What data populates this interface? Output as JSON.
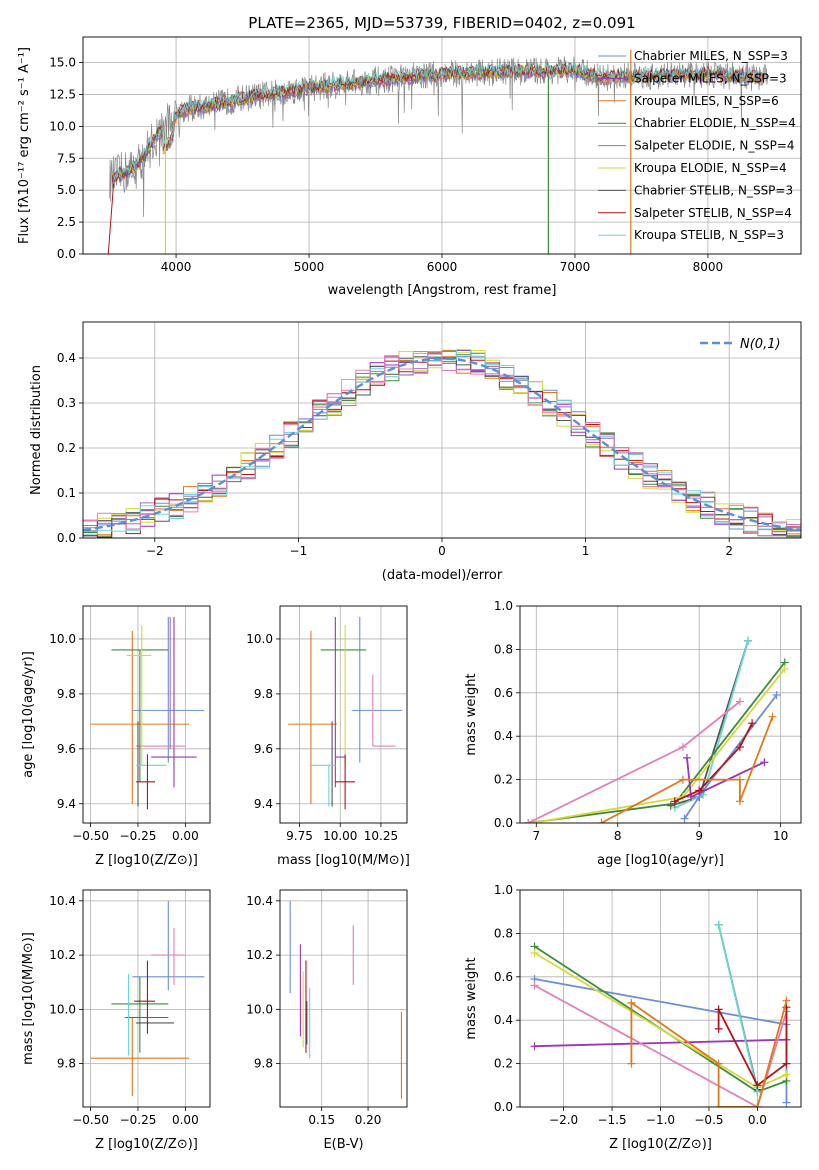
{
  "colors": {
    "chabrier_miles": "#6a8fd6",
    "salpeter_miles": "#9b36b7",
    "kroupa_miles": "#e0791b",
    "chabrier_elodie": "#3f8a3f",
    "salpeter_elodie": "#a66cc4",
    "kroupa_elodie": "#d6d83a",
    "chabrier_stelib": "#555555",
    "salpeter_stelib": "#b0141c",
    "kroupa_stelib": "#6cd6d6",
    "pink": "#e27fb7",
    "grey": "#888888",
    "normal": "#5b8fd6"
  },
  "chart_data": [
    {
      "id": "spectrum",
      "type": "line",
      "title": "PLATE=2365, MJD=53739, FIBERID=0402, z=0.091",
      "xlabel": "wavelength [Angstrom, rest frame]",
      "ylabel": "Flux [fλ10⁻¹⁷ erg cm⁻² s⁻¹ A⁻¹]",
      "xlim": [
        3300,
        8700
      ],
      "ylim": [
        0,
        17
      ],
      "xticks": [
        "4000",
        "5000",
        "6000",
        "7000",
        "8000"
      ],
      "yticks": [
        "0.0",
        "2.5",
        "5.0",
        "7.5",
        "10.0",
        "12.5",
        "15.0"
      ],
      "legend_position": "right",
      "legend": [
        {
          "label": "Chabrier MILES, N_SSP=3",
          "color_key": "chabrier_miles"
        },
        {
          "label": "Salpeter MILES, N_SSP=3",
          "color_key": "salpeter_miles"
        },
        {
          "label": "Kroupa MILES, N_SSP=6",
          "color_key": "kroupa_miles"
        },
        {
          "label": "Chabrier ELODIE, N_SSP=4",
          "color_key": "chabrier_elodie"
        },
        {
          "label": "Salpeter ELODIE, N_SSP=4",
          "color_key": "salpeter_elodie"
        },
        {
          "label": "Kroupa ELODIE, N_SSP=4",
          "color_key": "kroupa_elodie"
        },
        {
          "label": "Chabrier STELIB, N_SSP=3",
          "color_key": "chabrier_stelib"
        },
        {
          "label": "Salpeter STELIB, N_SSP=4",
          "color_key": "salpeter_stelib"
        },
        {
          "label": "Kroupa STELIB, N_SSP=3",
          "color_key": "kroupa_stelib"
        }
      ],
      "continuum": {
        "x": [
          3500,
          3700,
          3850,
          3950,
          4050,
          4250,
          4500,
          5000,
          5500,
          6000,
          6500,
          7000,
          7200,
          7400,
          8000,
          8400
        ],
        "y": [
          5.8,
          6.8,
          9.2,
          10.3,
          11.3,
          11.6,
          12.2,
          13.0,
          13.6,
          14.1,
          14.3,
          14.4,
          13.8,
          13.9,
          14.1,
          13.8
        ]
      }
    },
    {
      "id": "residuals",
      "type": "histogram",
      "xlabel": "(data-model)/error",
      "ylabel": "Normed distribution",
      "xlim": [
        -2.5,
        2.5
      ],
      "ylim": [
        0,
        0.48
      ],
      "xticks": [
        "−2",
        "−1",
        "0",
        "1",
        "2"
      ],
      "yticks": [
        "0.0",
        "0.1",
        "0.2",
        "0.3",
        "0.4"
      ],
      "legend": [
        {
          "label": "N(0,1)",
          "color_key": "normal"
        }
      ],
      "legend_position": "upper right",
      "bin_width": 0.1
    },
    {
      "id": "age_vs_Z",
      "type": "errorbar",
      "xlabel": "Z [log10(Z/Z⊙)]",
      "ylabel": "age [log10(age/yr)]",
      "xlim": [
        -0.54,
        0.13
      ],
      "ylim": [
        9.33,
        10.12
      ],
      "xticks": [
        "−0.50",
        "−0.25",
        "0.00"
      ],
      "yticks": [
        "9.4",
        "9.6",
        "9.8",
        "10.0"
      ],
      "points": [
        {
          "color_key": "chabrier_miles",
          "x": -0.09,
          "xerr": [
            0.19,
            0.19
          ],
          "y": 9.74,
          "yerr": [
            0.19,
            0.34
          ]
        },
        {
          "color_key": "kroupa_miles",
          "x": -0.28,
          "xerr": [
            0.22,
            0.3
          ],
          "y": 9.69,
          "yerr": [
            0.29,
            0.34
          ]
        },
        {
          "color_key": "salpeter_miles",
          "x": -0.06,
          "xerr": [
            0.12,
            0.12
          ],
          "y": 9.57,
          "yerr": [
            0.11,
            0.51
          ]
        },
        {
          "color_key": "pink",
          "x": -0.16,
          "xerr": [
            0.1,
            0.16
          ],
          "y": 9.61,
          "yerr": [
            0.0,
            0.0
          ]
        },
        {
          "color_key": "chabrier_elodie",
          "x": -0.24,
          "xerr": [
            0.15,
            0.15
          ],
          "y": 9.96,
          "yerr": [
            0.48,
            0.0
          ]
        },
        {
          "color_key": "kroupa_elodie",
          "x": -0.23,
          "xerr": [
            0.08,
            0.05
          ],
          "y": 9.94,
          "yerr": [
            0.4,
            0.11
          ]
        },
        {
          "color_key": "chabrier_stelib",
          "x": -0.25,
          "xerr": [
            0.0,
            0.0
          ],
          "y": 9.54,
          "yerr": [
            0.15,
            0.16
          ]
        },
        {
          "color_key": "kroupa_stelib",
          "x": -0.16,
          "xerr": [
            0.1,
            0.06
          ],
          "y": 9.54,
          "yerr": [
            0.0,
            0.0
          ]
        },
        {
          "color_key": "salpeter_stelib",
          "x": -0.2,
          "xerr": [
            0.06,
            0.04
          ],
          "y": 9.48,
          "yerr": [
            0.1,
            0.1
          ]
        },
        {
          "color_key": "salpeter_elodie",
          "x": -0.08,
          "xerr": [
            0.0,
            0.0
          ],
          "y": 9.6,
          "yerr": [
            0.0,
            0.48
          ]
        }
      ]
    },
    {
      "id": "age_vs_mass",
      "type": "errorbar",
      "xlabel": "mass [log10(M/M⊙)]",
      "ylabel": "",
      "xlim": [
        9.63,
        10.41
      ],
      "ylim": [
        9.33,
        10.12
      ],
      "xticks": [
        "9.75",
        "10.00",
        "10.25"
      ],
      "yticks": [
        "9.4",
        "9.6",
        "9.8",
        "10.0"
      ],
      "points": [
        {
          "color_key": "chabrier_miles",
          "x": 10.12,
          "xerr": [
            0.05,
            0.26
          ],
          "y": 9.74,
          "yerr": [
            0.19,
            0.34
          ]
        },
        {
          "color_key": "kroupa_miles",
          "x": 9.82,
          "xerr": [
            0.14,
            0.16
          ],
          "y": 9.69,
          "yerr": [
            0.29,
            0.34
          ]
        },
        {
          "color_key": "salpeter_miles",
          "x": 9.97,
          "xerr": [
            0.0,
            0.06
          ],
          "y": 9.57,
          "yerr": [
            0.11,
            0.51
          ]
        },
        {
          "color_key": "pink",
          "x": 10.2,
          "xerr": [
            0.0,
            0.14
          ],
          "y": 9.61,
          "yerr": [
            0.0,
            0.26
          ]
        },
        {
          "color_key": "chabrier_elodie",
          "x": 10.02,
          "xerr": [
            0.14,
            0.14
          ],
          "y": 9.96,
          "yerr": [
            0.0,
            0.0
          ]
        },
        {
          "color_key": "kroupa_elodie",
          "x": 10.03,
          "xerr": [
            0.0,
            0.0
          ],
          "y": 9.94,
          "yerr": [
            0.4,
            0.11
          ]
        },
        {
          "color_key": "chabrier_stelib",
          "x": 9.95,
          "xerr": [
            0.0,
            0.0
          ],
          "y": 9.54,
          "yerr": [
            0.15,
            0.16
          ]
        },
        {
          "color_key": "kroupa_stelib",
          "x": 9.93,
          "xerr": [
            0.12,
            0.04
          ],
          "y": 9.54,
          "yerr": [
            0.15,
            0.0
          ]
        },
        {
          "color_key": "salpeter_stelib",
          "x": 10.03,
          "xerr": [
            0.06,
            0.06
          ],
          "y": 9.48,
          "yerr": [
            0.1,
            0.1
          ]
        }
      ]
    },
    {
      "id": "massweight_vs_age",
      "type": "line",
      "xlabel": "age [log10(age/yr)]",
      "ylabel": "mass weight",
      "xlim": [
        6.8,
        10.25
      ],
      "ylim": [
        0,
        1.0
      ],
      "xticks": [
        "7",
        "8",
        "9",
        "10"
      ],
      "yticks": [
        "0.0",
        "0.2",
        "0.4",
        "0.6",
        "0.8",
        "1.0"
      ],
      "series": [
        {
          "color_key": "chabrier_stelib",
          "x": [
            8.65,
            9.0,
            9.6
          ],
          "y": [
            0.08,
            0.12,
            0.84
          ]
        },
        {
          "color_key": "kroupa_stelib",
          "x": [
            8.7,
            9.05,
            9.6
          ],
          "y": [
            0.07,
            0.13,
            0.84
          ]
        },
        {
          "color_key": "chabrier_miles",
          "x": [
            8.82,
            9.05,
            9.95
          ],
          "y": [
            0.02,
            0.15,
            0.59
          ]
        },
        {
          "color_key": "chabrier_elodie",
          "x": [
            6.9,
            8.7,
            10.05
          ],
          "y": [
            0.0,
            0.09,
            0.74
          ]
        },
        {
          "color_key": "kroupa_elodie",
          "x": [
            6.95,
            8.8,
            10.05
          ],
          "y": [
            0.0,
            0.12,
            0.71
          ]
        },
        {
          "color_key": "pink",
          "x": [
            6.9,
            8.8,
            9.5
          ],
          "y": [
            0.0,
            0.35,
            0.56
          ]
        },
        {
          "color_key": "salpeter_miles",
          "x": [
            8.85,
            8.9,
            9.8
          ],
          "y": [
            0.3,
            0.12,
            0.28
          ]
        },
        {
          "color_key": "salpeter_stelib",
          "x": [
            8.7,
            9.0,
            9.5,
            9.65
          ],
          "y": [
            0.1,
            0.15,
            0.35,
            0.46
          ]
        },
        {
          "color_key": "kroupa_miles",
          "x": [
            7.8,
            8.8,
            9.5,
            9.5,
            9.9
          ],
          "y": [
            0.0,
            0.2,
            0.2,
            0.1,
            0.49
          ]
        }
      ]
    },
    {
      "id": "mass_vs_Z",
      "type": "errorbar",
      "xlabel": "Z [log10(Z/Z⊙)]",
      "ylabel": "mass [log10(M/M⊙)]",
      "xlim": [
        -0.54,
        0.13
      ],
      "ylim": [
        9.64,
        10.44
      ],
      "xticks": [
        "−0.50",
        "−0.25",
        "0.00"
      ],
      "yticks": [
        "9.8",
        "10.0",
        "10.2",
        "10.4"
      ],
      "points": [
        {
          "color_key": "chabrier_miles",
          "x": -0.09,
          "xerr": [
            0.19,
            0.19
          ],
          "y": 10.12,
          "yerr": [
            0.05,
            0.28
          ]
        },
        {
          "color_key": "kroupa_miles",
          "x": -0.28,
          "xerr": [
            0.22,
            0.3
          ],
          "y": 9.82,
          "yerr": [
            0.14,
            0.15
          ]
        },
        {
          "color_key": "pink",
          "x": -0.06,
          "xerr": [
            0.12,
            0.06
          ],
          "y": 10.2,
          "yerr": [
            0.11,
            0.1
          ]
        },
        {
          "color_key": "chabrier_elodie",
          "x": -0.24,
          "xerr": [
            0.15,
            0.15
          ],
          "y": 10.02,
          "yerr": [
            0.18,
            0.1
          ]
        },
        {
          "color_key": "chabrier_stelib",
          "x": -0.18,
          "xerr": [
            0.08,
            0.12
          ],
          "y": 9.95,
          "yerr": [
            0.0,
            0.0
          ]
        },
        {
          "color_key": "salpeter_miles",
          "x": -0.2,
          "xerr": [
            0.12,
            0.11
          ],
          "y": 9.97,
          "yerr": [
            0.0,
            0.0
          ]
        },
        {
          "color_key": "salpeter_stelib",
          "x": -0.2,
          "xerr": [
            0.07,
            0.04
          ],
          "y": 10.03,
          "yerr": [
            0.12,
            0.15
          ]
        },
        {
          "color_key": "kroupa_stelib",
          "x": -0.3,
          "xerr": [
            0.0,
            0.0
          ],
          "y": 9.98,
          "yerr": [
            0.15,
            0.15
          ]
        }
      ]
    },
    {
      "id": "mass_vs_ebv",
      "type": "errorbar",
      "xlabel": "E(B-V)",
      "ylabel": "",
      "xlim": [
        0.105,
        0.242
      ],
      "ylim": [
        9.64,
        10.44
      ],
      "xticks": [
        "0.15",
        "0.20"
      ],
      "yticks": [
        "9.8",
        "10.0",
        "10.2",
        "10.4"
      ],
      "points": [
        {
          "color_key": "chabrier_miles",
          "x": 0.116,
          "y": 10.23,
          "yerr": [
            0.17,
            0.17
          ]
        },
        {
          "color_key": "salpeter_miles",
          "x": 0.127,
          "y": 10.07,
          "yerr": [
            0.17,
            0.17
          ]
        },
        {
          "color_key": "kroupa_elodie",
          "x": 0.13,
          "y": 10.0,
          "yerr": [
            0.14,
            0.14
          ]
        },
        {
          "color_key": "salpeter_stelib",
          "x": 0.133,
          "y": 10.01,
          "yerr": [
            0.17,
            0.17
          ]
        },
        {
          "color_key": "chabrier_stelib",
          "x": 0.134,
          "y": 9.95,
          "yerr": [
            0.08,
            0.08
          ]
        },
        {
          "color_key": "kroupa_stelib",
          "x": 0.137,
          "y": 9.95,
          "yerr": [
            0.13,
            0.13
          ]
        },
        {
          "color_key": "pink",
          "x": 0.184,
          "y": 10.2,
          "yerr": [
            0.11,
            0.11
          ]
        },
        {
          "color_key": "kroupa_miles",
          "x": 0.236,
          "y": 9.83,
          "yerr": [
            0.16,
            0.16
          ]
        }
      ]
    },
    {
      "id": "massweight_vs_Z",
      "type": "line",
      "xlabel": "Z [log10(Z/Z⊙)]",
      "ylabel": "mass weight",
      "xlim": [
        -2.45,
        0.45
      ],
      "ylim": [
        0,
        1.0
      ],
      "xticks": [
        "−2.0",
        "−1.5",
        "−1.0",
        "−0.5",
        "0.0"
      ],
      "yticks": [
        "0.0",
        "0.2",
        "0.4",
        "0.6",
        "0.8",
        "1.0"
      ],
      "series": [
        {
          "color_key": "chabrier_miles",
          "x": [
            -2.3,
            0.3,
            0.3
          ],
          "y": [
            0.59,
            0.38,
            0.02
          ]
        },
        {
          "color_key": "salpeter_miles",
          "x": [
            -2.3,
            0.3
          ],
          "y": [
            0.28,
            0.31
          ]
        },
        {
          "color_key": "chabrier_elodie",
          "x": [
            -2.3,
            0.0,
            0.3
          ],
          "y": [
            0.74,
            0.07,
            0.12
          ]
        },
        {
          "color_key": "kroupa_elodie",
          "x": [
            -2.3,
            0.0,
            0.3
          ],
          "y": [
            0.71,
            0.09,
            0.15
          ]
        },
        {
          "color_key": "pink",
          "x": [
            -2.3,
            0.0,
            0.3
          ],
          "y": [
            0.56,
            0.0,
            0.44
          ]
        },
        {
          "color_key": "chabrier_stelib",
          "x": [
            -0.4,
            0.0
          ],
          "y": [
            0.84,
            0.08
          ]
        },
        {
          "color_key": "kroupa_stelib",
          "x": [
            -0.4,
            0.0
          ],
          "y": [
            0.84,
            0.07
          ]
        },
        {
          "color_key": "salpeter_stelib",
          "x": [
            -0.4,
            -0.4,
            0.0,
            0.3,
            0.3
          ],
          "y": [
            0.36,
            0.45,
            0.1,
            0.2,
            0.46
          ]
        },
        {
          "color_key": "kroupa_miles",
          "x": [
            -1.3,
            -1.3,
            -0.4,
            -0.4,
            0.0,
            0.3
          ],
          "y": [
            0.2,
            0.48,
            0.2,
            0.0,
            0.0,
            0.49
          ]
        }
      ]
    }
  ]
}
